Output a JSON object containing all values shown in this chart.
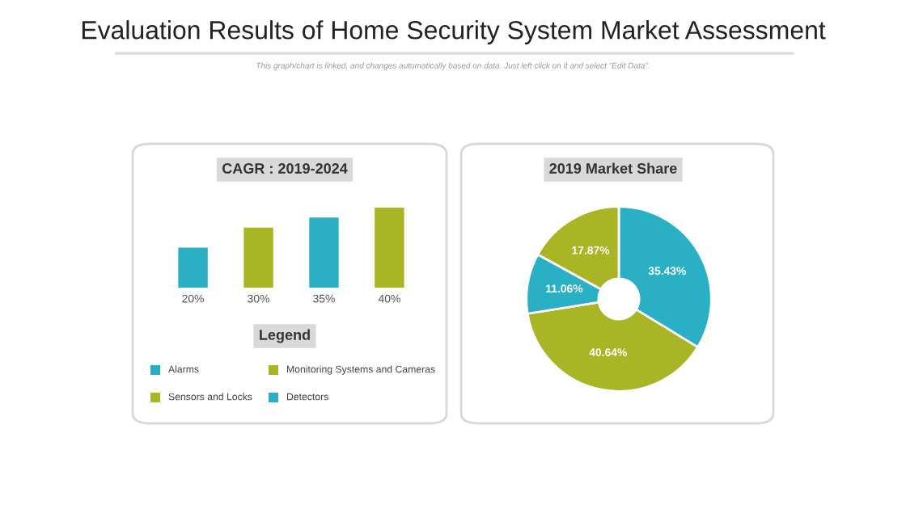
{
  "chart_data": [
    {
      "type": "bar",
      "title": "CAGR : 2019-2024",
      "annotations": [
        "Evaluation Results of Home Security System Market Assessment",
        "This graph/chart is linked, and changes automatically based on data. Just left click on it and select \"Edit Data\"."
      ],
      "categories": [
        null,
        null,
        null,
        null
      ],
      "values": [
        20,
        30,
        35,
        40
      ],
      "colors": [
        "#2ab0c5",
        "#a9b524",
        "#2ab0c5",
        "#a9b524"
      ],
      "value_labels": [
        "20%",
        "30%",
        "35%",
        "40%"
      ]
    },
    {
      "type": "other",
      "title": "Legend",
      "annotations": [
        "Alarms",
        "Monitoring Systems and Cameras",
        "Sensors and Locks",
        "Detectors"
      ],
      "colors": [
        "#2ab0c5",
        "#a9b524",
        "#a9b524",
        "#2ab0c5"
      ]
    },
    {
      "type": "donut",
      "title": "2019 Market Share",
      "categories": [
        null,
        null,
        null,
        null
      ],
      "values": [
        35.43,
        40.64,
        11.06,
        17.87
      ],
      "colors": [
        "#2ab0c5",
        "#a9b524",
        "#2ab0c5",
        "#a9b524"
      ],
      "value_labels": [
        "35.43%",
        "40.64%",
        "11.06%",
        "17.87%"
      ]
    }
  ]
}
